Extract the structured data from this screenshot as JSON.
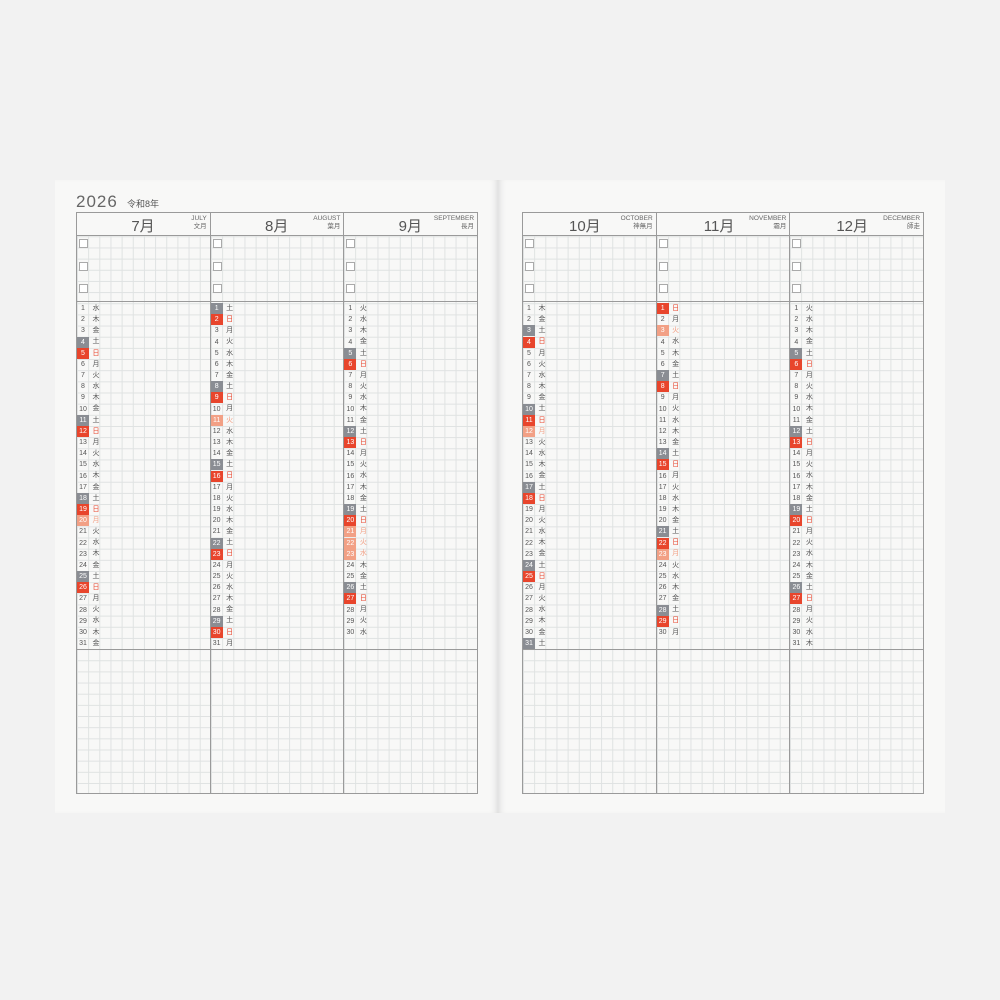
{
  "year": "2026",
  "era": "令和8年",
  "colors": {
    "saturday": "#8a8d93",
    "sunday": "#e8452c",
    "holiday": "#f2a085"
  },
  "months": [
    {
      "num": "7月",
      "en": "JULY",
      "jp": "文月",
      "weekdays": "水木金土日月火水木金土日月火水木金土日月火水木金土日月火水木金",
      "holidays": [
        20
      ]
    },
    {
      "num": "8月",
      "en": "AUGUST",
      "jp": "葉月",
      "weekdays": "土日月火水木金土日月火水木金土日月火水木金土日月火水木金土日月",
      "holidays": [
        11
      ]
    },
    {
      "num": "9月",
      "en": "SEPTEMBER",
      "jp": "長月",
      "weekdays": "火水木金土日月火水木金土日月火水木金土日月火水木金土日月火水",
      "holidays": [
        21,
        22,
        23
      ]
    },
    {
      "num": "10月",
      "en": "OCTOBER",
      "jp": "神無月",
      "weekdays": "木金土日月火水木金土日月火水木金土日月火水木金土日月火水木金土",
      "holidays": [
        12
      ]
    },
    {
      "num": "11月",
      "en": "NOVEMBER",
      "jp": "霜月",
      "weekdays": "日月火水木金土日月火水木金土日月火水木金土日月火水木金土日月",
      "holidays": [
        3,
        23
      ]
    },
    {
      "num": "12月",
      "en": "DECEMBER",
      "jp": "師走",
      "weekdays": "火水木金土日月火水木金土日月火水木金土日月火水木金土日月火水木",
      "holidays": []
    }
  ]
}
